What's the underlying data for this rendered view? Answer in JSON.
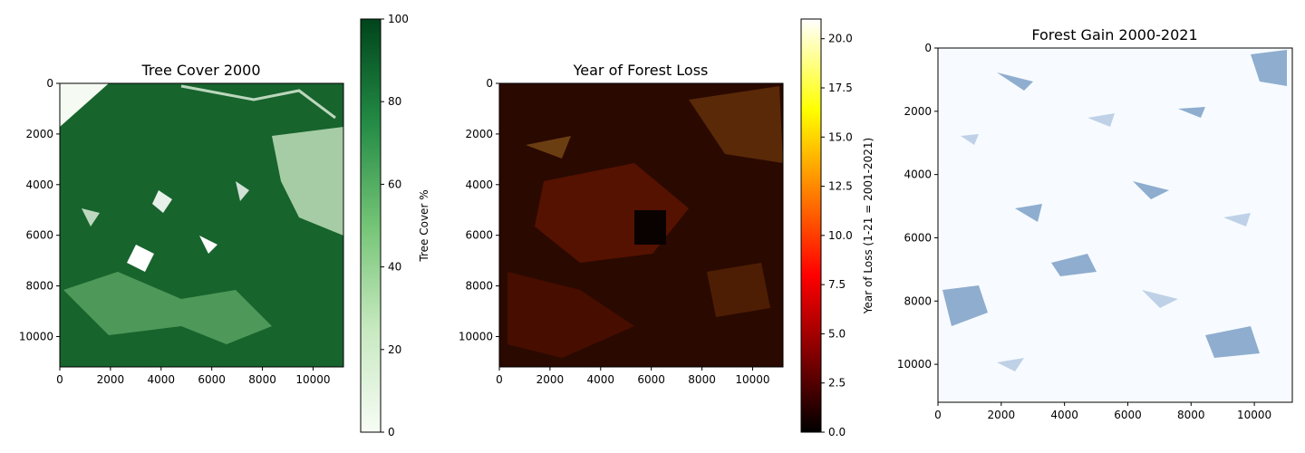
{
  "chart_data": [
    {
      "type": "heatmap",
      "title": "Tree Cover 2000",
      "x_ticks": [
        0,
        2000,
        4000,
        6000,
        8000,
        10000
      ],
      "y_ticks": [
        0,
        2000,
        4000,
        6000,
        8000,
        10000
      ],
      "xlim": [
        0,
        11200
      ],
      "ylim": [
        11200,
        0
      ],
      "colormap": "Greens",
      "colors": [
        "#f7fcf5",
        "#c7e9c0",
        "#74c476",
        "#238b45",
        "#00441b"
      ],
      "colorbar": {
        "label": "Tree Cover %",
        "range": [
          0,
          100
        ],
        "ticks": [
          0,
          20,
          40,
          60,
          80,
          100
        ]
      }
    },
    {
      "type": "heatmap",
      "title": "Year of Forest Loss",
      "x_ticks": [
        0,
        2000,
        4000,
        6000,
        8000,
        10000
      ],
      "y_ticks": [
        0,
        2000,
        4000,
        6000,
        8000,
        10000
      ],
      "xlim": [
        0,
        11200
      ],
      "ylim": [
        11200,
        0
      ],
      "colormap": "hot",
      "colors": [
        "#000000",
        "#8b0000",
        "#ff0000",
        "#ff8c00",
        "#ffff00",
        "#ffffff"
      ],
      "colorbar": {
        "label": "Year of Loss (1-21 = 2001-2021)",
        "range": [
          0,
          21
        ],
        "ticks": [
          "0.0",
          "2.5",
          "5.0",
          "7.5",
          "10.0",
          "12.5",
          "15.0",
          "17.5",
          "20.0"
        ]
      }
    },
    {
      "type": "heatmap",
      "title": "Forest Gain 2000-2021",
      "x_ticks": [
        0,
        2000,
        4000,
        6000,
        8000,
        10000
      ],
      "y_ticks": [
        0,
        2000,
        4000,
        6000,
        8000,
        10000
      ],
      "xlim": [
        0,
        11200
      ],
      "ylim": [
        11200,
        0
      ],
      "colormap": "Blues",
      "colors": [
        "#f7fbff",
        "#c6dbef",
        "#6baed6",
        "#2171b5",
        "#08306b"
      ]
    }
  ]
}
